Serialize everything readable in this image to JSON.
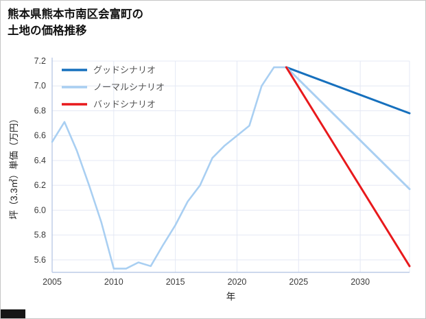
{
  "header": {
    "title_line1": "熊本県熊本市南区会富町の",
    "title_line2": "土地の価格推移"
  },
  "watermark": {
    "color": "#161616"
  },
  "chart_data": {
    "type": "line",
    "title": "熊本県熊本市南区会富町の土地の価格推移",
    "xlabel": "年",
    "ylabel": "坪（3.3㎡）単価（万円）",
    "xlim": [
      2005,
      2034
    ],
    "ylim": [
      5.5,
      7.2
    ],
    "xticks": [
      2005,
      2010,
      2015,
      2020,
      2025,
      2030
    ],
    "yticks": [
      5.6,
      5.8,
      6.0,
      6.2,
      6.4,
      6.6,
      6.8,
      7.0,
      7.2
    ],
    "grid": true,
    "legend_position": "top-left",
    "colors": {
      "grid": "#e4e8f4",
      "axis": "#bccbe6",
      "tick_label": "#3a3a3a",
      "legend_text": "#555555",
      "good": "#1670bd",
      "normal": "#a9cff2",
      "bad": "#e8191c"
    },
    "series": [
      {
        "name": "history",
        "label": "",
        "legend": false,
        "color": "#a9cff2",
        "width": 2.6,
        "x": [
          2005,
          2006,
          2007,
          2008,
          2009,
          2010,
          2011,
          2012,
          2013,
          2014,
          2015,
          2016,
          2017,
          2018,
          2019,
          2020,
          2021,
          2022,
          2023,
          2024
        ],
        "y": [
          6.55,
          6.71,
          6.48,
          6.2,
          5.9,
          5.53,
          5.53,
          5.58,
          5.55,
          5.72,
          5.88,
          6.07,
          6.2,
          6.42,
          6.52,
          6.6,
          6.68,
          7.0,
          7.15,
          7.15
        ]
      },
      {
        "name": "good-scenario",
        "label": "グッドシナリオ",
        "legend": true,
        "color": "#1670bd",
        "width": 3,
        "x": [
          2024,
          2034
        ],
        "y": [
          7.15,
          6.78
        ]
      },
      {
        "name": "normal-scenario",
        "label": "ノーマルシナリオ",
        "legend": true,
        "color": "#a9cff2",
        "width": 3,
        "x": [
          2024,
          2034
        ],
        "y": [
          7.15,
          6.17
        ]
      },
      {
        "name": "bad-scenario",
        "label": "バッドシナリオ",
        "legend": true,
        "color": "#e8191c",
        "width": 3,
        "x": [
          2024,
          2034
        ],
        "y": [
          7.15,
          5.55
        ]
      }
    ]
  }
}
